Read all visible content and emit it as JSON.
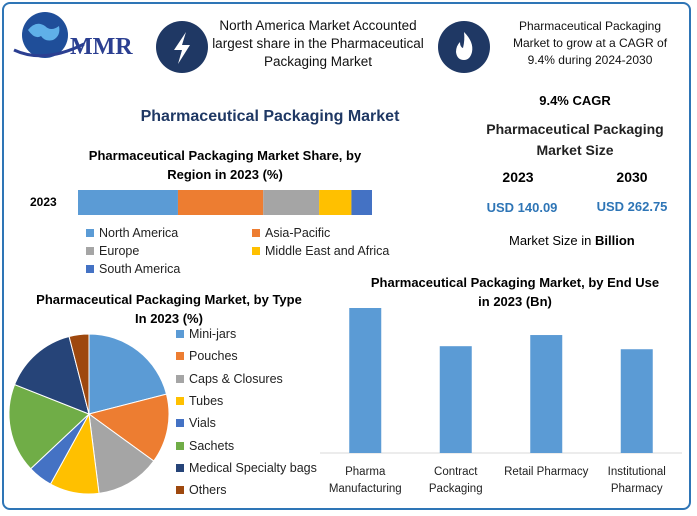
{
  "header": {
    "logo_text": "MMR",
    "info_left": "North America Market Accounted largest share in the Pharmaceutical Packaging Market",
    "info_right": "Pharmaceutical Packaging Market to grow at a CAGR of 9.4% during 2024-2030"
  },
  "title": "Pharmaceutical Packaging Market",
  "market_size": {
    "cagr": "9.4% CAGR",
    "title": "Pharmaceutical Packaging Market Size",
    "years": [
      "2023",
      "2030"
    ],
    "amounts": [
      "USD 140.09",
      "USD 262.75"
    ],
    "note": "Market Size in",
    "note_unit": "Billion"
  },
  "chart_data": [
    {
      "type": "stacked-bar",
      "title": "Pharmaceutical Packaging Market Share, by Region in 2023 (%)",
      "categories": [
        "2023"
      ],
      "series": [
        {
          "name": "North America",
          "color": "#5b9bd5",
          "values": [
            34
          ]
        },
        {
          "name": "Asia-Pacific",
          "color": "#ed7d31",
          "values": [
            29
          ]
        },
        {
          "name": "Europe",
          "color": "#a5a5a5",
          "values": [
            19
          ]
        },
        {
          "name": "Middle East and Africa",
          "color": "#ffc000",
          "values": [
            11
          ]
        },
        {
          "name": "South America",
          "color": "#4472c4",
          "values": [
            7
          ]
        }
      ]
    },
    {
      "type": "pie",
      "title": "Pharmaceutical Packaging Market, by Type In 2023 (%)",
      "categories": [
        "Mini-jars",
        "Pouches",
        "Caps & Closures",
        "Tubes",
        "Vials",
        "Sachets",
        "Medical Specialty bags",
        "Others"
      ],
      "values": [
        21,
        14,
        13,
        10,
        5,
        18,
        15,
        4
      ],
      "colors": [
        "#5b9bd5",
        "#ed7d31",
        "#a5a5a5",
        "#ffc000",
        "#4472c4",
        "#70ad47",
        "#264478",
        "#9e480e"
      ]
    },
    {
      "type": "bar",
      "title": "Pharmaceutical Packaging Market, by End Use in 2023 (Bn)",
      "categories": [
        "Pharma Manufacturing",
        "Contract Packaging",
        "Retail Pharmacy",
        "Institutional Pharmacy"
      ],
      "values": [
        42.9,
        31.6,
        34.9,
        30.7
      ],
      "color": "#5b9bd5"
    }
  ]
}
